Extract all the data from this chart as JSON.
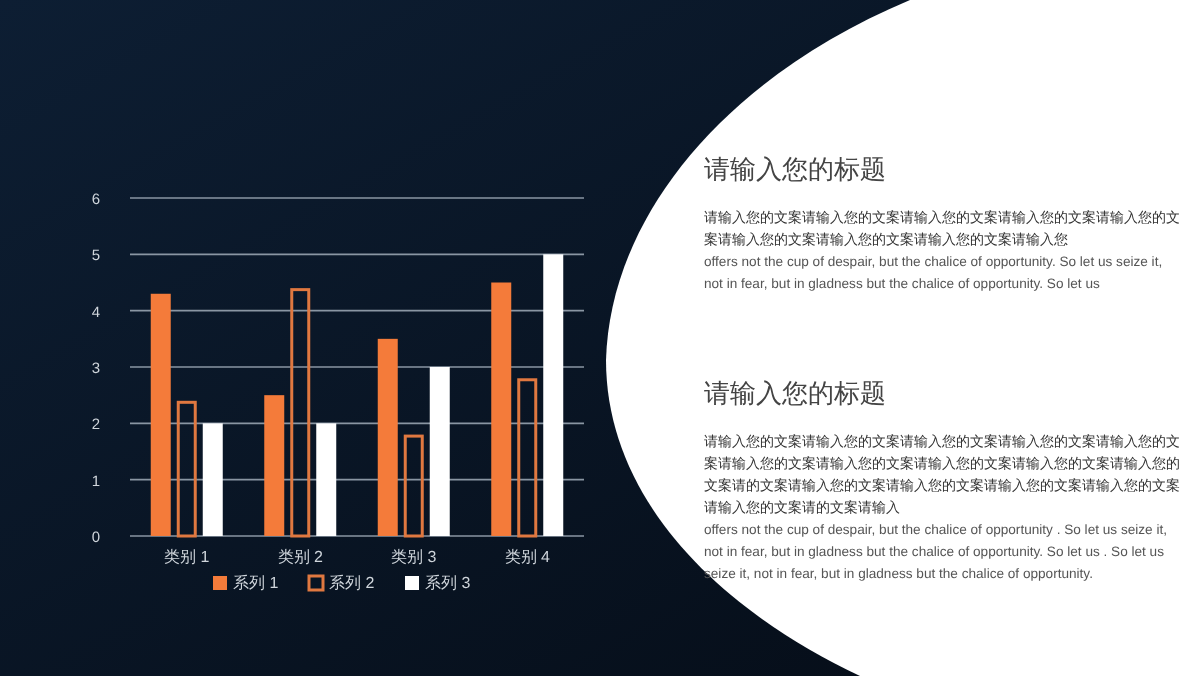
{
  "chart_data": [
    {
      "type": "bar",
      "categories": [
        "类别 1",
        "类别 2",
        "类别 3",
        "类别 4"
      ],
      "series": [
        {
          "name": "系列 1",
          "color": "#f47b3a",
          "values": [
            4.3,
            2.5,
            3.5,
            4.5
          ]
        },
        {
          "name": "系列 2",
          "color": "#e07840",
          "values": [
            2.4,
            4.4,
            1.8,
            2.8
          ]
        },
        {
          "name": "系列 3",
          "color": "#ffffff",
          "values": [
            2,
            2,
            3,
            5
          ]
        }
      ],
      "ylim": [
        0,
        6
      ],
      "yticks": [
        0,
        1,
        2,
        3,
        4,
        5,
        6
      ],
      "grid": "y",
      "legend": "bottom"
    },
    {
      "type": "other",
      "annotations": [
        "请输入您的标题",
        "请输入您的文案请输入您的文案请输入您的文案请输入您的文案请输入您的文案请输入您的文案请输入您的文案请输入您的文案请输入您",
        "offers not the cup of despair, but the chalice of opportunity. So let us seize it, not in fear, but in gladness but the chalice of opportunity. So let us",
        "请输入您的标题",
        "请输入您的文案请输入您的文案请输入您的文案请输入您的文案请输入您的文案请输入您的文案请输入您的文案请输入您的文案请输入您的文案请输入您的文案请的文案请输入您的文案请输入您的文案请输入您的文案请输入您的文案请输入您的文案请的文案请输入",
        "offers not the cup of despair, but the chalice of opportunity . So let us seize it, not in fear, but in gladness but the chalice of opportunity. So let us . So let us seize it, not in fear, but in gladness but the chalice of opportunity."
      ]
    }
  ]
}
